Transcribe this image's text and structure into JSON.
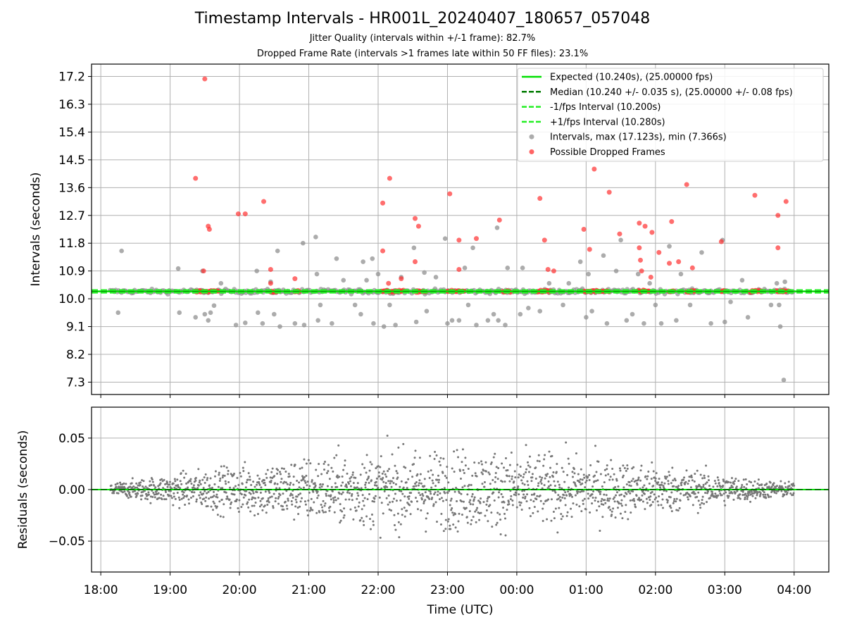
{
  "chart_data": {
    "type": "scatter",
    "title": "Timestamp Intervals - HR001L_20240407_180657_057048",
    "subtitles": [
      "Jitter Quality (intervals within +/-1 frame): 82.7%",
      "Dropped Frame Rate (intervals >1 frames late within 50 FF files): 23.1%"
    ],
    "xlabel": "Time (UTC)",
    "x_ticks": [
      "18:00",
      "19:00",
      "20:00",
      "21:00",
      "22:00",
      "23:00",
      "00:00",
      "01:00",
      "02:00",
      "03:00",
      "04:00"
    ],
    "xlim": [
      "17:52",
      "04:30"
    ],
    "top_panel": {
      "ylabel": "Intervals (seconds)",
      "ylim": [
        6.9,
        17.6
      ],
      "y_ticks": [
        "7.3",
        "8.2",
        "9.1",
        "10.0",
        "10.9",
        "11.8",
        "12.7",
        "13.6",
        "14.5",
        "15.4",
        "16.3",
        "17.2"
      ],
      "grid": true,
      "legend_position": "top-right",
      "reference_lines": [
        {
          "name": "Expected (10.240s), (25.00000 fps)",
          "value": 10.24,
          "style": "solid",
          "color": "#00e000"
        },
        {
          "name": "Median (10.240 +/- 0.035 s), (25.00000 +/- 0.08 fps)",
          "value": 10.24,
          "style": "dashed",
          "color": "#007a00"
        },
        {
          "name": "-1/fps Interval (10.200s)",
          "value": 10.2,
          "style": "dashed",
          "color": "#22ee22"
        },
        {
          "name": "+1/fps Interval (10.280s)",
          "value": 10.28,
          "style": "dashed",
          "color": "#22ee22"
        }
      ],
      "series": [
        {
          "name": "Intervals, max (17.123s), min (7.366s)",
          "color": "#909090",
          "points": [
            [
              "18:18",
              11.55
            ],
            [
              "18:15",
              9.55
            ],
            [
              "19:07",
              10.98
            ],
            [
              "19:08",
              9.55
            ],
            [
              "19:22",
              9.4
            ],
            [
              "19:28",
              10.9
            ],
            [
              "19:30",
              9.5
            ],
            [
              "19:33",
              9.3
            ],
            [
              "19:35",
              9.55
            ],
            [
              "19:38",
              9.78
            ],
            [
              "19:44",
              10.5
            ],
            [
              "19:57",
              9.15
            ],
            [
              "20:05",
              9.22
            ],
            [
              "20:15",
              10.9
            ],
            [
              "20:16",
              9.55
            ],
            [
              "20:20",
              9.2
            ],
            [
              "20:27",
              10.55
            ],
            [
              "20:30",
              9.5
            ],
            [
              "20:33",
              11.55
            ],
            [
              "20:35",
              9.1
            ],
            [
              "20:45",
              10.2
            ],
            [
              "20:48",
              9.2
            ],
            [
              "20:55",
              11.8
            ],
            [
              "20:56",
              9.15
            ],
            [
              "21:06",
              12.0
            ],
            [
              "21:07",
              10.8
            ],
            [
              "21:08",
              9.3
            ],
            [
              "21:10",
              9.8
            ],
            [
              "21:20",
              9.2
            ],
            [
              "21:24",
              11.3
            ],
            [
              "21:30",
              10.6
            ],
            [
              "21:40",
              9.8
            ],
            [
              "21:45",
              9.5
            ],
            [
              "21:47",
              11.2
            ],
            [
              "21:50",
              10.6
            ],
            [
              "21:55",
              11.3
            ],
            [
              "21:56",
              9.2
            ],
            [
              "22:00",
              10.8
            ],
            [
              "22:05",
              9.1
            ],
            [
              "22:10",
              9.8
            ],
            [
              "22:15",
              9.15
            ],
            [
              "22:20",
              10.7
            ],
            [
              "22:31",
              11.65
            ],
            [
              "22:33",
              9.25
            ],
            [
              "22:40",
              10.85
            ],
            [
              "22:42",
              9.6
            ],
            [
              "22:50",
              10.7
            ],
            [
              "22:58",
              11.95
            ],
            [
              "23:00",
              9.2
            ],
            [
              "23:04",
              9.3
            ],
            [
              "23:10",
              9.3
            ],
            [
              "23:15",
              11.0
            ],
            [
              "23:18",
              9.8
            ],
            [
              "23:22",
              11.65
            ],
            [
              "23:25",
              9.15
            ],
            [
              "23:35",
              9.3
            ],
            [
              "23:40",
              9.5
            ],
            [
              "23:43",
              12.3
            ],
            [
              "23:44",
              9.3
            ],
            [
              "23:50",
              9.15
            ],
            [
              "23:52",
              11.0
            ],
            [
              "24:03",
              9.5
            ],
            [
              "24:05",
              11.0
            ],
            [
              "24:10",
              9.7
            ],
            [
              "24:20",
              9.6
            ],
            [
              "24:28",
              10.5
            ],
            [
              "24:40",
              9.8
            ],
            [
              "24:45",
              10.5
            ],
            [
              "24:55",
              11.2
            ],
            [
              "25:00",
              9.4
            ],
            [
              "25:02",
              10.8
            ],
            [
              "25:05",
              9.6
            ],
            [
              "25:15",
              11.4
            ],
            [
              "25:18",
              9.2
            ],
            [
              "25:26",
              10.9
            ],
            [
              "25:30",
              11.9
            ],
            [
              "25:35",
              9.3
            ],
            [
              "25:40",
              9.5
            ],
            [
              "25:45",
              10.8
            ],
            [
              "25:50",
              9.2
            ],
            [
              "25:55",
              10.5
            ],
            [
              "26:00",
              9.8
            ],
            [
              "26:05",
              9.2
            ],
            [
              "26:12",
              11.7
            ],
            [
              "26:18",
              9.3
            ],
            [
              "26:22",
              10.8
            ],
            [
              "26:30",
              9.8
            ],
            [
              "26:40",
              11.5
            ],
            [
              "26:48",
              9.2
            ],
            [
              "26:58",
              11.9
            ],
            [
              "27:00",
              9.25
            ],
            [
              "27:05",
              9.9
            ],
            [
              "27:15",
              10.6
            ],
            [
              "27:20",
              9.4
            ],
            [
              "27:40",
              9.8
            ],
            [
              "27:45",
              10.5
            ],
            [
              "27:47",
              9.8
            ],
            [
              "27:48",
              9.1
            ],
            [
              "27:51",
              7.37
            ],
            [
              "27:52",
              10.55
            ]
          ]
        },
        {
          "name": "Possible Dropped Frames",
          "color": "#ff3030",
          "points": [
            [
              "19:30",
              17.12
            ],
            [
              "19:22",
              13.9
            ],
            [
              "19:33",
              12.35
            ],
            [
              "19:34",
              12.25
            ],
            [
              "19:29",
              10.9
            ],
            [
              "19:59",
              12.75
            ],
            [
              "20:05",
              12.75
            ],
            [
              "20:21",
              13.15
            ],
            [
              "20:27",
              10.95
            ],
            [
              "20:27",
              10.5
            ],
            [
              "20:48",
              10.65
            ],
            [
              "22:04",
              13.1
            ],
            [
              "22:04",
              11.55
            ],
            [
              "22:10",
              13.9
            ],
            [
              "22:09",
              10.5
            ],
            [
              "22:20",
              10.65
            ],
            [
              "22:32",
              12.6
            ],
            [
              "22:35",
              12.35
            ],
            [
              "22:32",
              11.2
            ],
            [
              "23:02",
              13.4
            ],
            [
              "23:10",
              11.9
            ],
            [
              "23:10",
              10.95
            ],
            [
              "23:25",
              11.95
            ],
            [
              "23:45",
              12.55
            ],
            [
              "24:20",
              13.25
            ],
            [
              "24:27",
              10.95
            ],
            [
              "24:24",
              11.9
            ],
            [
              "24:32",
              10.9
            ],
            [
              "24:58",
              12.25
            ],
            [
              "25:03",
              11.6
            ],
            [
              "25:07",
              14.2
            ],
            [
              "25:20",
              13.45
            ],
            [
              "25:29",
              12.1
            ],
            [
              "25:46",
              12.45
            ],
            [
              "25:51",
              12.35
            ],
            [
              "25:46",
              11.65
            ],
            [
              "25:47",
              11.25
            ],
            [
              "25:48",
              10.9
            ],
            [
              "25:57",
              12.15
            ],
            [
              "25:56",
              10.7
            ],
            [
              "26:03",
              11.5
            ],
            [
              "26:12",
              11.15
            ],
            [
              "26:14",
              12.5
            ],
            [
              "26:20",
              11.2
            ],
            [
              "26:32",
              11.0
            ],
            [
              "26:27",
              13.7
            ],
            [
              "26:57",
              11.85
            ],
            [
              "27:26",
              13.35
            ],
            [
              "27:46",
              12.7
            ],
            [
              "27:46",
              11.65
            ],
            [
              "27:53",
              13.15
            ]
          ]
        }
      ]
    },
    "bottom_panel": {
      "ylabel": "Residuals (seconds)",
      "ylim": [
        -0.08,
        0.08
      ],
      "y_ticks": [
        "−0.05",
        "0.00",
        "0.05"
      ],
      "grid": true,
      "reference_lines": [
        {
          "value": 0.0,
          "style": "solid",
          "color": "#00e000"
        },
        {
          "value": 0.0,
          "style": "dashed",
          "color": "#007a00"
        }
      ],
      "series": [
        {
          "name": "Residuals",
          "color": "#777777",
          "time_span": [
            "18:08",
            "04:00"
          ]
        }
      ]
    }
  }
}
